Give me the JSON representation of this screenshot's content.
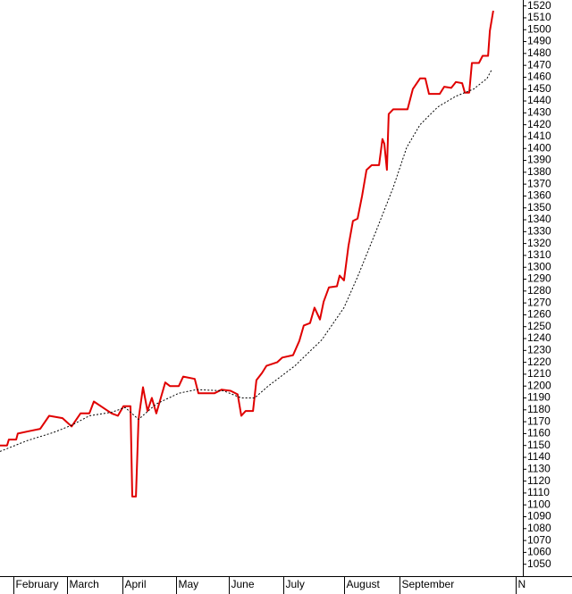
{
  "chart_data": {
    "type": "line",
    "xlim": [
      0,
      200
    ],
    "xticks": [
      {
        "value": 5.1,
        "label": "February"
      },
      {
        "value": 25.6,
        "label": "March"
      },
      {
        "value": 46.8,
        "label": "April"
      },
      {
        "value": 67.4,
        "label": "May"
      },
      {
        "value": 87.5,
        "label": "June"
      },
      {
        "value": 108.4,
        "label": "July"
      },
      {
        "value": 131.6,
        "label": "August"
      },
      {
        "value": 152.8,
        "label": "September"
      },
      {
        "value": 197.3,
        "label": "N"
      }
    ],
    "ylim": [
      1040,
      1525
    ],
    "yticks": [
      1050,
      1060,
      1070,
      1080,
      1090,
      1100,
      1110,
      1120,
      1130,
      1140,
      1150,
      1160,
      1170,
      1180,
      1190,
      1200,
      1210,
      1220,
      1230,
      1240,
      1250,
      1260,
      1270,
      1280,
      1290,
      1300,
      1310,
      1320,
      1330,
      1340,
      1350,
      1360,
      1370,
      1380,
      1390,
      1400,
      1410,
      1420,
      1430,
      1440,
      1450,
      1460,
      1470,
      1480,
      1490,
      1500,
      1510,
      1520
    ],
    "series": [
      {
        "color": "#e00000",
        "dashed": false,
        "x": [
          0,
          2.7,
          3.4,
          6.2,
          6.8,
          10.9,
          15.4,
          18.8,
          23.9,
          27.4,
          30.8,
          34.2,
          35.9,
          39.3,
          42.7,
          45.1,
          47.2,
          49.9,
          50.6,
          52,
          53,
          54.7,
          56.4,
          58.1,
          59.8,
          61.5,
          63.2,
          65,
          68.4,
          70.1,
          74.5,
          75.9,
          82.1,
          84.8,
          88.2,
          90.9,
          92.3,
          94,
          96.8,
          98.1,
          100.2,
          101.9,
          106,
          108,
          112.1,
          114.5,
          116.2,
          118.6,
          120.3,
          122.4,
          123.8,
          125.8,
          128.9,
          129.9,
          131.6,
          133.3,
          135,
          136.8,
          138.5,
          140.2,
          142.2,
          145,
          146.3,
          147,
          148,
          148.7,
          150.4,
          155.9,
          157.9,
          160.7,
          162.7,
          164.1,
          168.2,
          169.9,
          172.6,
          174.4,
          176.8,
          177.8,
          179.5,
          180.5,
          183.2,
          184.6,
          186.7,
          187.4,
          188.7
        ],
        "values": [
          1150,
          1150,
          1155,
          1155,
          1160,
          1162,
          1164,
          1175,
          1173,
          1166,
          1177,
          1177,
          1187,
          1182,
          1177,
          1175,
          1183,
          1183,
          1107,
          1107,
          1172,
          1199,
          1179,
          1190,
          1177,
          1190,
          1203,
          1200,
          1200,
          1208,
          1206,
          1194,
          1194,
          1197,
          1196,
          1193,
          1175,
          1179,
          1179,
          1205,
          1211,
          1217,
          1220,
          1224,
          1226,
          1238,
          1251,
          1253,
          1266,
          1256,
          1271,
          1283,
          1284,
          1293,
          1289,
          1318,
          1339,
          1341,
          1360,
          1382,
          1386,
          1386,
          1408,
          1404,
          1382,
          1429,
          1433,
          1433,
          1450,
          1459,
          1459,
          1446,
          1446,
          1452,
          1451,
          1456,
          1455,
          1447,
          1447,
          1472,
          1472,
          1478,
          1478,
          1499,
          1516
        ]
      },
      {
        "color": "#000000",
        "dashed": true,
        "x": [
          0,
          10.3,
          20.5,
          27.4,
          34.2,
          42.7,
          47.9,
          53,
          59.8,
          68.4,
          75.2,
          85.5,
          92.3,
          97.4,
          102.6,
          112.8,
          123.1,
          131.6,
          136.8,
          143.6,
          150.4,
          155.6,
          160.7,
          167.5,
          174.4,
          181.2,
          186.3,
          188
        ],
        "values": [
          1145,
          1154,
          1161,
          1167,
          1175,
          1178,
          1182,
          1172,
          1185,
          1194,
          1197,
          1196,
          1190,
          1190,
          1200,
          1217,
          1239,
          1266,
          1292,
          1329,
          1367,
          1401,
          1420,
          1435,
          1444,
          1450,
          1459,
          1466
        ]
      }
    ]
  }
}
